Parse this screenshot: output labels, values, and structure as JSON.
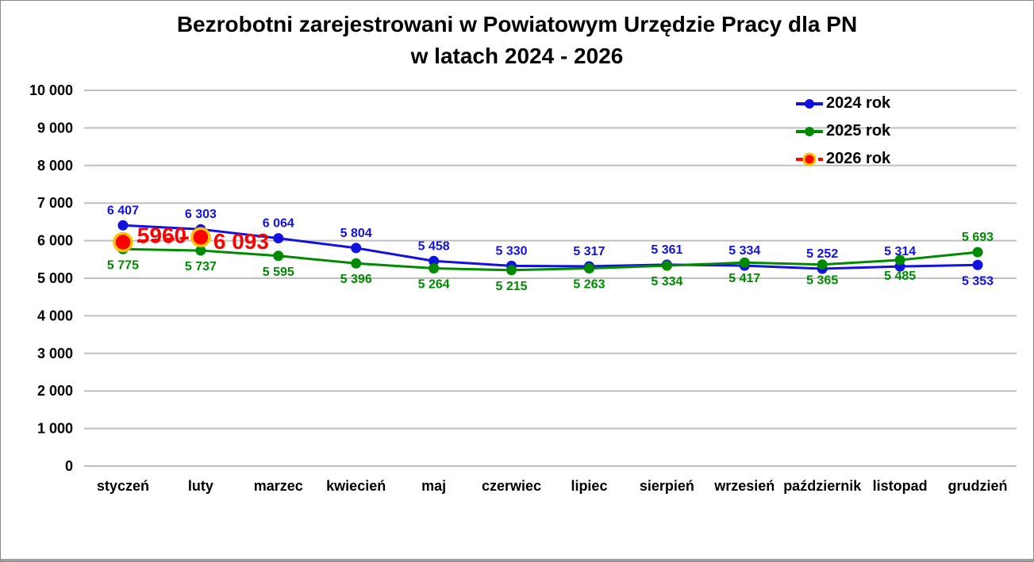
{
  "title": {
    "line1": "Bezrobotni zarejestrowani w Powiatowym Urzędzie Pracy dla PN",
    "line2": "w latach 2024 - 2026"
  },
  "colors": {
    "series_2024": "#1111e0",
    "series_2025": "#008a00",
    "series_2026": "#fe0000",
    "series_2026_marker_ring": "#ffc000",
    "gridline": "#bfbfbf",
    "text": "#000000",
    "background": "#ffffff"
  },
  "chart_data": {
    "type": "line",
    "title": "Bezrobotni zarejestrowani w Powiatowym Urzędzie Pracy dla PN w latach 2024 - 2026",
    "categories": [
      "styczeń",
      "luty",
      "marzec",
      "kwiecień",
      "maj",
      "czerwiec",
      "lipiec",
      "sierpień",
      "wrzesień",
      "październik",
      "listopad",
      "grudzień"
    ],
    "ylim": [
      0,
      10000
    ],
    "ytick_step": 1000,
    "ytick_labels": [
      "0",
      "1 000",
      "2 000",
      "3 000",
      "4 000",
      "5 000",
      "6 000",
      "7 000",
      "8 000",
      "9 000",
      "10 000"
    ],
    "grid": true,
    "legend_position": "top-right",
    "series": [
      {
        "name": "2024 rok",
        "color": "#1111e0",
        "dashed": false,
        "marker_ring": null,
        "values": [
          6407,
          6303,
          6064,
          5804,
          5458,
          5330,
          5317,
          5361,
          5334,
          5252,
          5314,
          5353
        ],
        "labels": [
          "6 407",
          "6 303",
          "6 064",
          "5 804",
          "5 458",
          "5 330",
          "5 317",
          "5 361",
          "5 334",
          "5 252",
          "5 314",
          "5 353"
        ],
        "label_side": [
          "above",
          "above",
          "above",
          "above",
          "above",
          "above",
          "above",
          "above",
          "above",
          "above",
          "above",
          "below"
        ]
      },
      {
        "name": "2025 rok",
        "color": "#008a00",
        "dashed": false,
        "marker_ring": null,
        "values": [
          5775,
          5737,
          5595,
          5396,
          5264,
          5215,
          5263,
          5334,
          5417,
          5365,
          5485,
          5693
        ],
        "labels": [
          "5 775",
          "5 737",
          "5 595",
          "5 396",
          "5 264",
          "5 215",
          "5 263",
          "5 334",
          "5 417",
          "5 365",
          "5 485",
          "5 693"
        ],
        "label_side": [
          "below",
          "below",
          "below",
          "below",
          "below",
          "below",
          "below",
          "below",
          "below",
          "below",
          "below",
          "above"
        ]
      },
      {
        "name": "2026 rok",
        "color": "#fe0000",
        "dashed": true,
        "marker_ring": "#ffc000",
        "values": [
          5960,
          6093,
          null,
          null,
          null,
          null,
          null,
          null,
          null,
          null,
          null,
          null
        ],
        "labels": [
          "5960",
          "6 093",
          "",
          "",
          "",
          "",
          "",
          "",
          "",
          "",
          "",
          ""
        ],
        "big_labels": true,
        "label_anchor": [
          "middle",
          "start"
        ],
        "label_offset": [
          [
            49,
            1
          ],
          [
            16,
            15
          ]
        ]
      }
    ]
  }
}
